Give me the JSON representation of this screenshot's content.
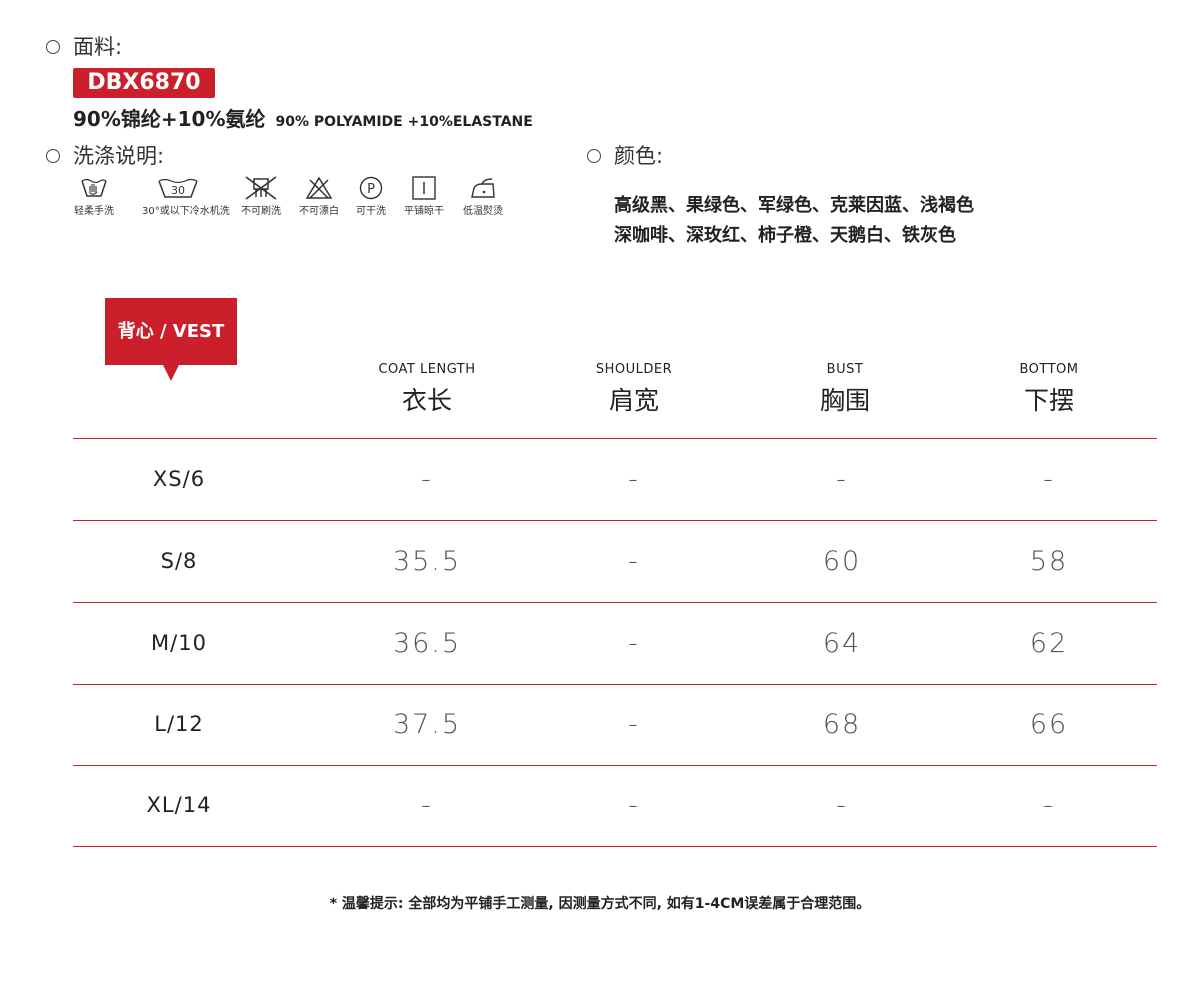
{
  "fabric": {
    "label": "面料:",
    "code": "DBX6870",
    "composition_cn": "90%锦纶+10%氨纶",
    "composition_en": "90% POLYAMIDE +10%ELASTANE"
  },
  "care": {
    "label": "洗涤说明:",
    "items": [
      {
        "label": "轻柔手洗",
        "icon": "hand-wash-icon"
      },
      {
        "label": "30°或以下冷水机洗",
        "icon": "machine-wash-30-icon",
        "text": "30"
      },
      {
        "label": "不可刷洗",
        "icon": "no-brush-icon"
      },
      {
        "label": "不可漂白",
        "icon": "no-bleach-icon"
      },
      {
        "label": "可干洗",
        "icon": "dry-clean-p-icon",
        "text": "P"
      },
      {
        "label": "平铺晾干",
        "icon": "dry-flat-icon"
      },
      {
        "label": "低温熨烫",
        "icon": "low-iron-icon"
      }
    ]
  },
  "colors": {
    "label": "颜色:",
    "line1": "高级黑、果绿色、军绿色、克莱因蓝、浅褐色",
    "line2": "深咖啡、深玫红、柿子橙、天鹅白、铁灰色"
  },
  "size_table": {
    "tag": "背心 / VEST",
    "columns": [
      {
        "en": "COAT LENGTH",
        "cn": "衣长"
      },
      {
        "en": "SHOULDER",
        "cn": "肩宽"
      },
      {
        "en": "BUST",
        "cn": "胸围"
      },
      {
        "en": "BOTTOM",
        "cn": "下摆"
      }
    ],
    "rows": [
      {
        "size": "XS/6",
        "values": [
          "-",
          "-",
          "-",
          "-"
        ]
      },
      {
        "size": "S/8",
        "values": [
          "35.5",
          "-",
          "60",
          "58"
        ]
      },
      {
        "size": "M/10",
        "values": [
          "36.5",
          "-",
          "64",
          "62"
        ]
      },
      {
        "size": "L/12",
        "values": [
          "37.5",
          "-",
          "68",
          "66"
        ]
      },
      {
        "size": "XL/14",
        "values": [
          "-",
          "-",
          "-",
          "-"
        ]
      }
    ]
  },
  "note": "* 温馨提示: 全部均为平铺手工测量, 因测量方式不同, 如有1-4CM误差属于合理范围。",
  "colors_palette": {
    "accent": "#cc1f2c",
    "text": "#222222"
  }
}
